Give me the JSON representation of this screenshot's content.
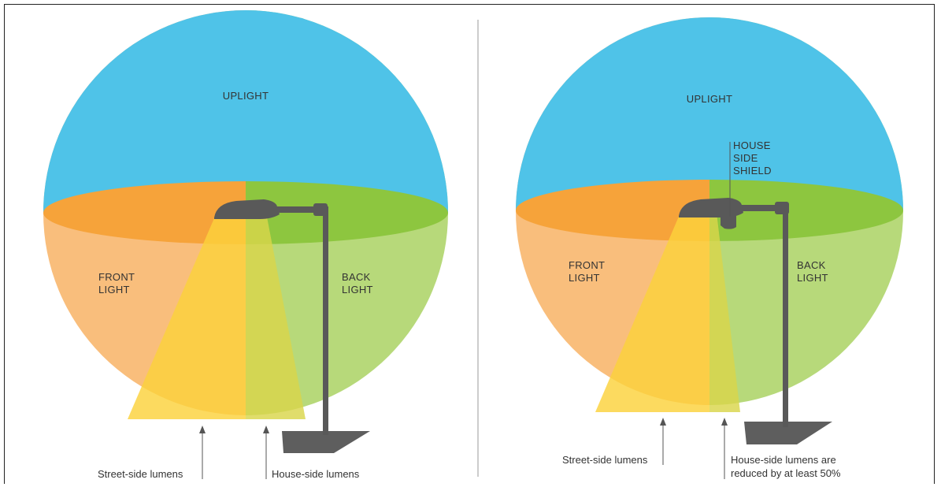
{
  "left_panel": {
    "uplight": "UPLIGHT",
    "front_light": [
      "FRONT",
      "LIGHT"
    ],
    "back_light": [
      "BACK",
      "LIGHT"
    ],
    "street_caption": "Street-side lumens",
    "house_caption": "House-side lumens"
  },
  "right_panel": {
    "uplight": "UPLIGHT",
    "shield_label": [
      "HOUSE",
      "SIDE",
      "SHIELD"
    ],
    "front_light": [
      "FRONT",
      "LIGHT"
    ],
    "back_light": [
      "BACK",
      "LIGHT"
    ],
    "street_caption": "Street-side lumens",
    "house_caption": [
      "House-side lumens are",
      "reduced by at least 50%"
    ]
  },
  "colors": {
    "uplight": "#4fc3e8",
    "front_light_band": "#f6a33a",
    "front_light_lower": "#f9be7c",
    "back_light_band": "#8dc63f",
    "back_light_lower": "#b7d97a",
    "beam_street": "#fbd23c",
    "beam_house": "#d9d64a",
    "pole": "#595959",
    "base": "#5e5e5e",
    "divider": "#cccccc"
  }
}
